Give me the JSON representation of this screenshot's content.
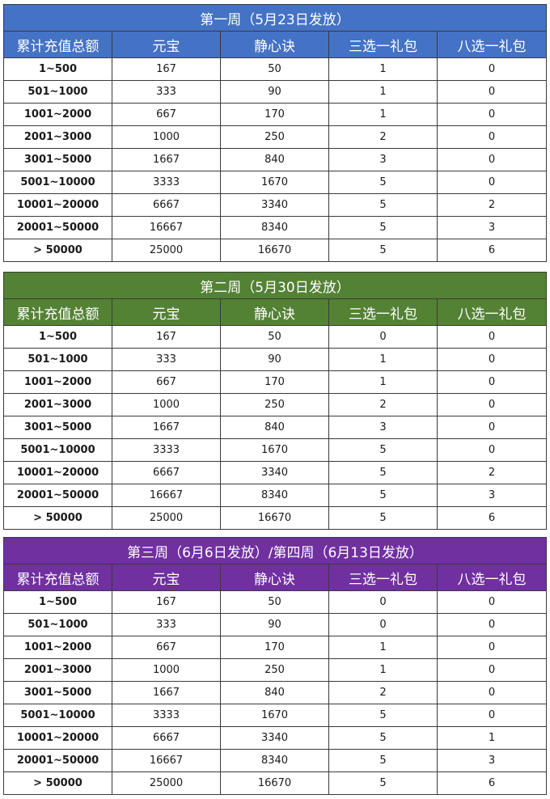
{
  "colors": {
    "week1_header": "#4472c4",
    "week2_header": "#548235",
    "week3_header": "#7030a0"
  },
  "columns": [
    "累计充值总额",
    "元宝",
    "静心诀",
    "三选一礼包",
    "八选一礼包"
  ],
  "weeks": [
    {
      "title": "第一周（5月23日发放）",
      "rows": [
        [
          "1~500",
          "167",
          "50",
          "1",
          "0"
        ],
        [
          "501~1000",
          "333",
          "90",
          "1",
          "0"
        ],
        [
          "1001~2000",
          "667",
          "170",
          "1",
          "0"
        ],
        [
          "2001~3000",
          "1000",
          "250",
          "2",
          "0"
        ],
        [
          "3001~5000",
          "1667",
          "840",
          "3",
          "0"
        ],
        [
          "5001~10000",
          "3333",
          "1670",
          "5",
          "0"
        ],
        [
          "10001~20000",
          "6667",
          "3340",
          "5",
          "2"
        ],
        [
          "20001~50000",
          "16667",
          "8340",
          "5",
          "3"
        ],
        [
          "> 50000",
          "25000",
          "16670",
          "5",
          "6"
        ]
      ]
    },
    {
      "title": "第二周（5月30日发放）",
      "rows": [
        [
          "1~500",
          "167",
          "50",
          "0",
          "0"
        ],
        [
          "501~1000",
          "333",
          "90",
          "1",
          "0"
        ],
        [
          "1001~2000",
          "667",
          "170",
          "1",
          "0"
        ],
        [
          "2001~3000",
          "1000",
          "250",
          "2",
          "0"
        ],
        [
          "3001~5000",
          "1667",
          "840",
          "3",
          "0"
        ],
        [
          "5001~10000",
          "3333",
          "1670",
          "5",
          "0"
        ],
        [
          "10001~20000",
          "6667",
          "3340",
          "5",
          "2"
        ],
        [
          "20001~50000",
          "16667",
          "8340",
          "5",
          "3"
        ],
        [
          "> 50000",
          "25000",
          "16670",
          "5",
          "6"
        ]
      ]
    },
    {
      "title": "第三周（6月6日发放）/第四周（6月13日发放）",
      "rows": [
        [
          "1~500",
          "167",
          "50",
          "0",
          "0"
        ],
        [
          "501~1000",
          "333",
          "90",
          "0",
          "0"
        ],
        [
          "1001~2000",
          "667",
          "170",
          "1",
          "0"
        ],
        [
          "2001~3000",
          "1000",
          "250",
          "1",
          "0"
        ],
        [
          "3001~5000",
          "1667",
          "840",
          "2",
          "0"
        ],
        [
          "5001~10000",
          "3333",
          "1670",
          "5",
          "0"
        ],
        [
          "10001~20000",
          "6667",
          "3340",
          "5",
          "1"
        ],
        [
          "20001~50000",
          "16667",
          "8340",
          "5",
          "3"
        ],
        [
          "> 50000",
          "25000",
          "16670",
          "5",
          "6"
        ]
      ]
    }
  ]
}
